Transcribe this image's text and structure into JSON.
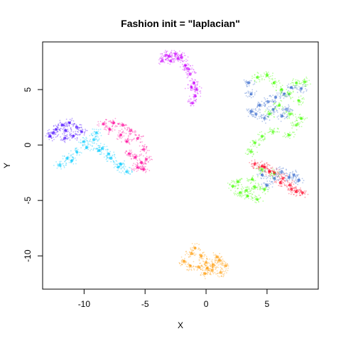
{
  "chart_data": {
    "type": "scatter",
    "title": "Fashion init = \"laplacian\"",
    "xlabel": "X",
    "ylabel": "Y",
    "xlim": [
      -13.4,
      9.2
    ],
    "ylim": [
      -13.0,
      9.3
    ],
    "x_ticks": [
      -10,
      -5,
      0,
      5
    ],
    "y_ticks": [
      -10,
      -5,
      0,
      5
    ],
    "x_tick_labels": [
      "-10",
      "-5",
      "0",
      "5"
    ],
    "y_tick_labels": [
      "-10",
      "-5",
      "0",
      "5"
    ],
    "grid": false,
    "legend": "none",
    "clusters": [
      {
        "color": "#cc00ff",
        "points": [
          [
            -3.6,
            7.6
          ],
          [
            -3.0,
            8.0
          ],
          [
            -2.5,
            8.2
          ],
          [
            -2.0,
            7.9
          ],
          [
            -1.7,
            7.2
          ],
          [
            -1.3,
            6.4
          ],
          [
            -1.0,
            5.6
          ],
          [
            -0.8,
            5.0
          ],
          [
            -0.9,
            4.4
          ],
          [
            -1.1,
            3.8
          ],
          [
            -2.3,
            7.8
          ],
          [
            -1.5,
            6.9
          ],
          [
            -1.2,
            5.2
          ],
          [
            -2.9,
            7.6
          ],
          [
            -3.3,
            8.1
          ]
        ]
      },
      {
        "color": "#4400ff",
        "points": [
          [
            -12.8,
            0.8
          ],
          [
            -12.3,
            1.4
          ],
          [
            -11.8,
            1.8
          ],
          [
            -11.2,
            2.0
          ],
          [
            -10.6,
            1.6
          ],
          [
            -10.2,
            1.2
          ],
          [
            -11.6,
            0.6
          ],
          [
            -12.5,
            1.1
          ],
          [
            -10.9,
            0.8
          ],
          [
            -11.5,
            1.3
          ]
        ]
      },
      {
        "color": "#00ccff",
        "points": [
          [
            -12.0,
            -1.8
          ],
          [
            -11.4,
            -1.2
          ],
          [
            -10.6,
            -0.6
          ],
          [
            -9.8,
            -0.2
          ],
          [
            -9.2,
            0.5
          ],
          [
            -8.5,
            -0.3
          ],
          [
            -7.8,
            -1.2
          ],
          [
            -7.2,
            -2.0
          ],
          [
            -6.5,
            -2.4
          ],
          [
            -9.0,
            1.1
          ],
          [
            -10.0,
            0.3
          ],
          [
            -8.0,
            -0.8
          ],
          [
            -11.0,
            -1.4
          ],
          [
            -7.0,
            -1.7
          ],
          [
            -8.8,
            -0.5
          ]
        ]
      },
      {
        "color": "#ff0099",
        "points": [
          [
            -8.4,
            1.9
          ],
          [
            -7.6,
            2.0
          ],
          [
            -6.8,
            1.8
          ],
          [
            -6.2,
            1.3
          ],
          [
            -5.6,
            0.6
          ],
          [
            -5.1,
            -0.4
          ],
          [
            -4.9,
            -1.3
          ],
          [
            -5.1,
            -2.2
          ],
          [
            -5.6,
            -2.0
          ],
          [
            -6.3,
            -0.8
          ],
          [
            -7.0,
            0.9
          ],
          [
            -6.5,
            0.3
          ],
          [
            -5.8,
            -1.1
          ],
          [
            -7.9,
            1.4
          ],
          [
            -5.3,
            -1.6
          ]
        ]
      },
      {
        "color": "#44ff00",
        "points": [
          [
            4.2,
            6.1
          ],
          [
            5.0,
            6.3
          ],
          [
            5.6,
            5.6
          ],
          [
            6.2,
            5.0
          ],
          [
            6.8,
            4.6
          ],
          [
            7.4,
            5.6
          ],
          [
            8.1,
            5.7
          ],
          [
            7.6,
            4.0
          ],
          [
            6.9,
            2.8
          ],
          [
            7.4,
            1.8
          ],
          [
            6.8,
            0.9
          ],
          [
            5.5,
            1.2
          ],
          [
            4.6,
            0.8
          ],
          [
            5.2,
            2.8
          ],
          [
            6.0,
            3.6
          ],
          [
            4.0,
            0.2
          ],
          [
            3.7,
            -0.6
          ],
          [
            7.8,
            2.4
          ]
        ]
      },
      {
        "color": "#3366cc",
        "points": [
          [
            3.7,
            3.0
          ],
          [
            4.4,
            3.6
          ],
          [
            5.1,
            3.9
          ],
          [
            5.7,
            4.3
          ],
          [
            6.4,
            4.6
          ],
          [
            7.0,
            5.2
          ],
          [
            7.8,
            5.1
          ],
          [
            4.8,
            2.4
          ],
          [
            5.5,
            3.2
          ],
          [
            6.6,
            3.2
          ],
          [
            3.5,
            5.6
          ],
          [
            3.7,
            4.6
          ],
          [
            4.1,
            2.8
          ],
          [
            6.2,
            2.6
          ]
        ]
      },
      {
        "color": "#44ff00",
        "points": [
          [
            2.2,
            -3.7
          ],
          [
            2.8,
            -4.3
          ],
          [
            3.4,
            -4.6
          ],
          [
            4.2,
            -4.9
          ],
          [
            4.8,
            -4.0
          ],
          [
            3.8,
            -3.1
          ],
          [
            4.6,
            -2.2
          ],
          [
            5.6,
            -2.6
          ],
          [
            2.6,
            -3.3
          ],
          [
            3.3,
            -4.1
          ],
          [
            4.0,
            -3.8
          ]
        ]
      },
      {
        "color": "#ff0022",
        "points": [
          [
            4.0,
            -1.7
          ],
          [
            4.8,
            -2.0
          ],
          [
            5.6,
            -2.5
          ],
          [
            6.3,
            -3.0
          ],
          [
            6.9,
            -3.6
          ],
          [
            7.4,
            -4.2
          ],
          [
            7.9,
            -4.3
          ],
          [
            6.1,
            -3.4
          ],
          [
            5.2,
            -2.4
          ],
          [
            4.6,
            -1.9
          ],
          [
            7.0,
            -4.0
          ]
        ]
      },
      {
        "color": "#3366cc",
        "points": [
          [
            4.6,
            -2.7
          ],
          [
            5.6,
            -3.0
          ],
          [
            6.8,
            -2.9
          ],
          [
            7.6,
            -3.2
          ],
          [
            5.0,
            -3.6
          ],
          [
            6.2,
            -2.4
          ],
          [
            7.2,
            -2.7
          ]
        ]
      },
      {
        "color": "#ff9900",
        "points": [
          [
            -1.8,
            -10.5
          ],
          [
            -1.2,
            -9.8
          ],
          [
            -0.9,
            -9.3
          ],
          [
            -0.4,
            -10.0
          ],
          [
            0.0,
            -10.6
          ],
          [
            0.6,
            -10.8
          ],
          [
            1.1,
            -10.4
          ],
          [
            1.6,
            -10.9
          ],
          [
            1.2,
            -11.5
          ],
          [
            0.5,
            -11.3
          ],
          [
            -0.1,
            -11.6
          ],
          [
            -0.6,
            -11.0
          ],
          [
            -1.3,
            -10.9
          ],
          [
            0.9,
            -10.1
          ],
          [
            0.1,
            -11.1
          ]
        ]
      }
    ]
  }
}
